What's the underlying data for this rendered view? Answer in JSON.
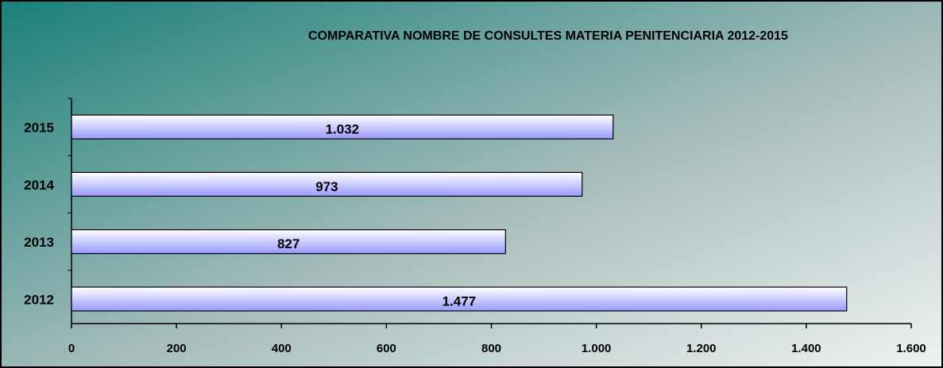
{
  "chart_data": {
    "type": "bar",
    "orientation": "horizontal",
    "title": "COMPARATIVA  NOMBRE DE CONSULTES MATERIA PENITENCIARIA  2012-2015",
    "categories": [
      "2012",
      "2013",
      "2014",
      "2015"
    ],
    "values": [
      1477,
      827,
      973,
      1032
    ],
    "value_labels": [
      "1.477",
      "827",
      "973",
      "1.032"
    ],
    "xlim": [
      0,
      1600
    ],
    "xticks": [
      0,
      200,
      400,
      600,
      800,
      {
        "value": 1000,
        "label": "1.000"
      },
      {
        "value": 1200,
        "label": "1.200"
      },
      {
        "value": 1400,
        "label": "1.400"
      },
      {
        "value": 1600,
        "label": "1.600"
      }
    ]
  }
}
